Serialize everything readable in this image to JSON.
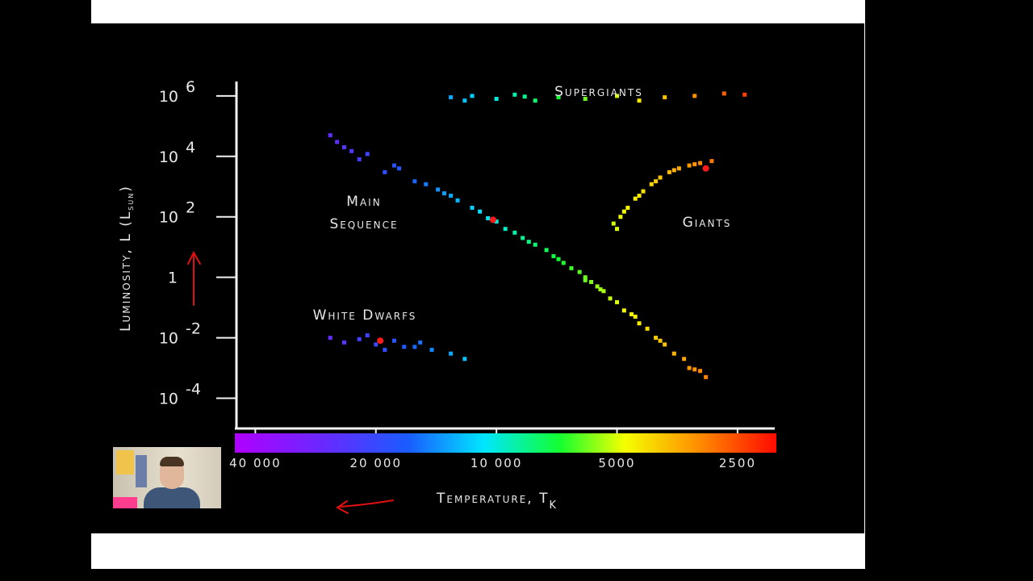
{
  "chart_data": {
    "type": "scatter",
    "ylabel": "Luminosity, L (L",
    "ylabel_sub": "sun",
    "ylabel_close": ")",
    "xlabel": "Temperature, T",
    "xlabel_sub": "K",
    "x_scale": "log",
    "x_reversed": true,
    "y_scale": "log",
    "xlim": [
      45000,
      2000
    ],
    "ylim": [
      1e-05,
      3000000
    ],
    "y_ticks": [
      {
        "base": "10",
        "exp": "6",
        "value": 1000000
      },
      {
        "base": "10",
        "exp": "4",
        "value": 10000
      },
      {
        "base": "10",
        "exp": "2",
        "value": 100
      },
      {
        "base": "1",
        "exp": "",
        "value": 1
      },
      {
        "base": "10",
        "exp": "-2",
        "value": 0.01
      },
      {
        "base": "10",
        "exp": "-4",
        "value": 0.0001
      }
    ],
    "x_ticks": [
      {
        "label": "40 000",
        "value": 40000
      },
      {
        "label": "20 000",
        "value": 20000
      },
      {
        "label": "10 000",
        "value": 10000
      },
      {
        "label": "5000",
        "value": 5000
      },
      {
        "label": "2500",
        "value": 2500
      }
    ],
    "annotations": [
      {
        "name": "supergiants",
        "lines": [
          "Supergiants"
        ]
      },
      {
        "name": "main-sequence",
        "lines": [
          "Main",
          "Sequence"
        ]
      },
      {
        "name": "giants",
        "lines": [
          "Giants"
        ]
      },
      {
        "name": "white-dwarfs",
        "lines": [
          "White Dwarfs"
        ]
      }
    ],
    "groups": [
      {
        "id": "main-sequence",
        "points": [
          [
            26000,
            50000
          ],
          [
            24000,
            20000
          ],
          [
            22000,
            8000
          ],
          [
            19000,
            3000
          ],
          [
            16000,
            1500
          ],
          [
            14000,
            800
          ],
          [
            12500,
            350
          ],
          [
            11000,
            150
          ],
          [
            10000,
            70
          ],
          [
            9000,
            30
          ],
          [
            8300,
            15
          ],
          [
            7500,
            8
          ],
          [
            7000,
            4
          ],
          [
            6500,
            2
          ],
          [
            6000,
            1
          ],
          [
            5600,
            0.5
          ],
          [
            5200,
            0.2
          ],
          [
            4800,
            0.08
          ],
          [
            4400,
            0.03
          ],
          [
            4000,
            0.01
          ],
          [
            3600,
            0.003
          ],
          [
            3300,
            0.001
          ],
          [
            3000,
            0.0005
          ],
          [
            25000,
            30000
          ],
          [
            21000,
            12000
          ],
          [
            17500,
            4000
          ],
          [
            15000,
            1200
          ],
          [
            13000,
            500
          ],
          [
            11500,
            200
          ],
          [
            9500,
            40
          ],
          [
            8000,
            12
          ],
          [
            7200,
            5
          ],
          [
            6800,
            3
          ],
          [
            6200,
            1.5
          ],
          [
            5800,
            0.7
          ],
          [
            5400,
            0.35
          ],
          [
            5000,
            0.15
          ],
          [
            4600,
            0.06
          ],
          [
            4200,
            0.02
          ],
          [
            3800,
            0.006
          ],
          [
            3400,
            0.002
          ],
          [
            3100,
            0.0008
          ],
          [
            23000,
            15000
          ],
          [
            18000,
            5000
          ],
          [
            13500,
            600
          ],
          [
            10500,
            90
          ],
          [
            8600,
            20
          ],
          [
            6000,
            0.8
          ],
          [
            5500,
            0.4
          ],
          [
            4500,
            0.05
          ],
          [
            3900,
            0.008
          ],
          [
            3200,
            0.0009
          ]
        ]
      },
      {
        "id": "giants",
        "points": [
          [
            5100,
            60
          ],
          [
            4900,
            100
          ],
          [
            4700,
            200
          ],
          [
            4500,
            400
          ],
          [
            4300,
            700
          ],
          [
            4100,
            1200
          ],
          [
            3900,
            2000
          ],
          [
            3700,
            3000
          ],
          [
            3500,
            4000
          ],
          [
            3300,
            5000
          ],
          [
            3100,
            6000
          ],
          [
            2900,
            7000
          ],
          [
            4800,
            150
          ],
          [
            4400,
            500
          ],
          [
            4000,
            1500
          ],
          [
            3600,
            3500
          ],
          [
            3200,
            5500
          ],
          [
            5000,
            40
          ]
        ]
      },
      {
        "id": "supergiants",
        "points": [
          [
            13000,
            900000
          ],
          [
            11500,
            1000000
          ],
          [
            10000,
            800000
          ],
          [
            9000,
            1100000
          ],
          [
            8000,
            700000
          ],
          [
            7000,
            900000
          ],
          [
            6000,
            800000
          ],
          [
            5000,
            1000000
          ],
          [
            4400,
            700000
          ],
          [
            3800,
            900000
          ],
          [
            3200,
            1000000
          ],
          [
            2700,
            1200000
          ],
          [
            2400,
            1100000
          ],
          [
            12000,
            700000
          ],
          [
            8500,
            950000
          ]
        ]
      },
      {
        "id": "white-dwarfs",
        "points": [
          [
            26000,
            0.01
          ],
          [
            24000,
            0.007
          ],
          [
            22000,
            0.009
          ],
          [
            20000,
            0.006
          ],
          [
            18000,
            0.008
          ],
          [
            16000,
            0.005
          ],
          [
            14500,
            0.004
          ],
          [
            13000,
            0.003
          ],
          [
            12000,
            0.002
          ],
          [
            21000,
            0.012
          ],
          [
            17000,
            0.005
          ],
          [
            15500,
            0.007
          ],
          [
            19000,
            0.004
          ]
        ]
      }
    ],
    "marked_points": [
      [
        10200,
        80
      ],
      [
        19500,
        0.008
      ],
      [
        3000,
        4000
      ]
    ],
    "temperature_bar": {
      "from": 45000,
      "to": 2000
    }
  },
  "colors": {
    "background": "#000000",
    "axis": "#f2f2f2",
    "text": "#e8e8e8",
    "marker": "#ff1a1a",
    "pen_annotation": "#e01010"
  },
  "icons": [
    "up-arrow-annotation-icon",
    "left-arrow-annotation-icon"
  ]
}
